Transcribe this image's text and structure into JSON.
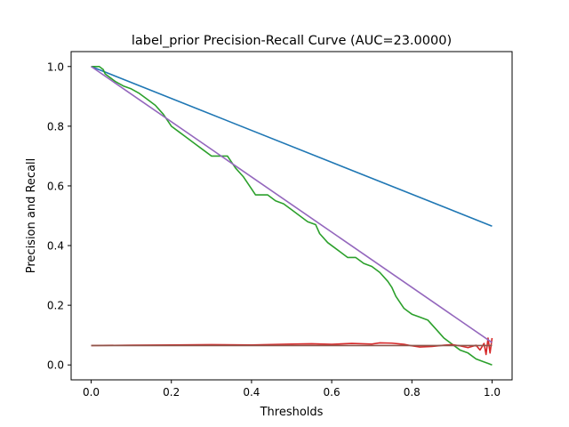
{
  "chart_data": {
    "type": "line",
    "title": "label_prior Precision-Recall Curve (AUC=23.0000)",
    "xlabel": "Thresholds",
    "ylabel": "Precision and Recall",
    "xlim": [
      -0.05,
      1.05
    ],
    "ylim": [
      -0.05,
      1.05
    ],
    "xticks": [
      "0.0",
      "0.2",
      "0.4",
      "0.6",
      "0.8",
      "1.0"
    ],
    "yticks": [
      "0.0",
      "0.2",
      "0.4",
      "0.6",
      "0.8",
      "1.0"
    ],
    "grid": false,
    "series": [
      {
        "color": "#1f77b4",
        "x": [
          0.0,
          1.0
        ],
        "y": [
          1.0,
          0.465
        ]
      },
      {
        "color": "#2ca02c",
        "x": [
          0.0,
          0.02,
          0.03,
          0.035,
          0.05,
          0.06,
          0.08,
          0.1,
          0.12,
          0.14,
          0.16,
          0.18,
          0.2,
          0.22,
          0.24,
          0.26,
          0.28,
          0.3,
          0.32,
          0.34,
          0.36,
          0.37,
          0.38,
          0.4,
          0.41,
          0.42,
          0.44,
          0.46,
          0.48,
          0.5,
          0.52,
          0.54,
          0.56,
          0.57,
          0.59,
          0.6,
          0.62,
          0.64,
          0.66,
          0.68,
          0.7,
          0.72,
          0.74,
          0.75,
          0.76,
          0.78,
          0.79,
          0.8,
          0.82,
          0.84,
          0.86,
          0.88,
          0.9,
          0.92,
          0.94,
          0.96,
          0.98,
          0.99,
          1.0
        ],
        "y": [
          1.0,
          1.0,
          0.99,
          0.975,
          0.96,
          0.95,
          0.935,
          0.925,
          0.91,
          0.89,
          0.87,
          0.84,
          0.8,
          0.78,
          0.76,
          0.74,
          0.72,
          0.7,
          0.7,
          0.7,
          0.66,
          0.645,
          0.63,
          0.59,
          0.57,
          0.57,
          0.57,
          0.55,
          0.54,
          0.52,
          0.5,
          0.48,
          0.47,
          0.44,
          0.41,
          0.4,
          0.38,
          0.36,
          0.36,
          0.34,
          0.33,
          0.31,
          0.28,
          0.26,
          0.23,
          0.19,
          0.18,
          0.17,
          0.16,
          0.15,
          0.12,
          0.09,
          0.07,
          0.05,
          0.04,
          0.02,
          0.01,
          0.005,
          0.0
        ]
      },
      {
        "color": "#d62728",
        "x": [
          0.0,
          0.1,
          0.2,
          0.3,
          0.4,
          0.5,
          0.55,
          0.6,
          0.65,
          0.7,
          0.72,
          0.75,
          0.78,
          0.8,
          0.82,
          0.85,
          0.88,
          0.9,
          0.92,
          0.94,
          0.96,
          0.97,
          0.98,
          0.985,
          0.99,
          0.995,
          1.0
        ],
        "y": [
          0.065,
          0.066,
          0.067,
          0.068,
          0.067,
          0.07,
          0.071,
          0.069,
          0.072,
          0.07,
          0.074,
          0.073,
          0.069,
          0.064,
          0.06,
          0.062,
          0.066,
          0.068,
          0.064,
          0.058,
          0.066,
          0.05,
          0.072,
          0.035,
          0.09,
          0.04,
          0.09
        ]
      },
      {
        "color": "#9467bd",
        "x": [
          0.0,
          1.0
        ],
        "y": [
          1.0,
          0.075
        ]
      },
      {
        "color": "#8c564b",
        "x": [
          0.0,
          1.0
        ],
        "y": [
          0.065,
          0.065
        ]
      }
    ]
  }
}
